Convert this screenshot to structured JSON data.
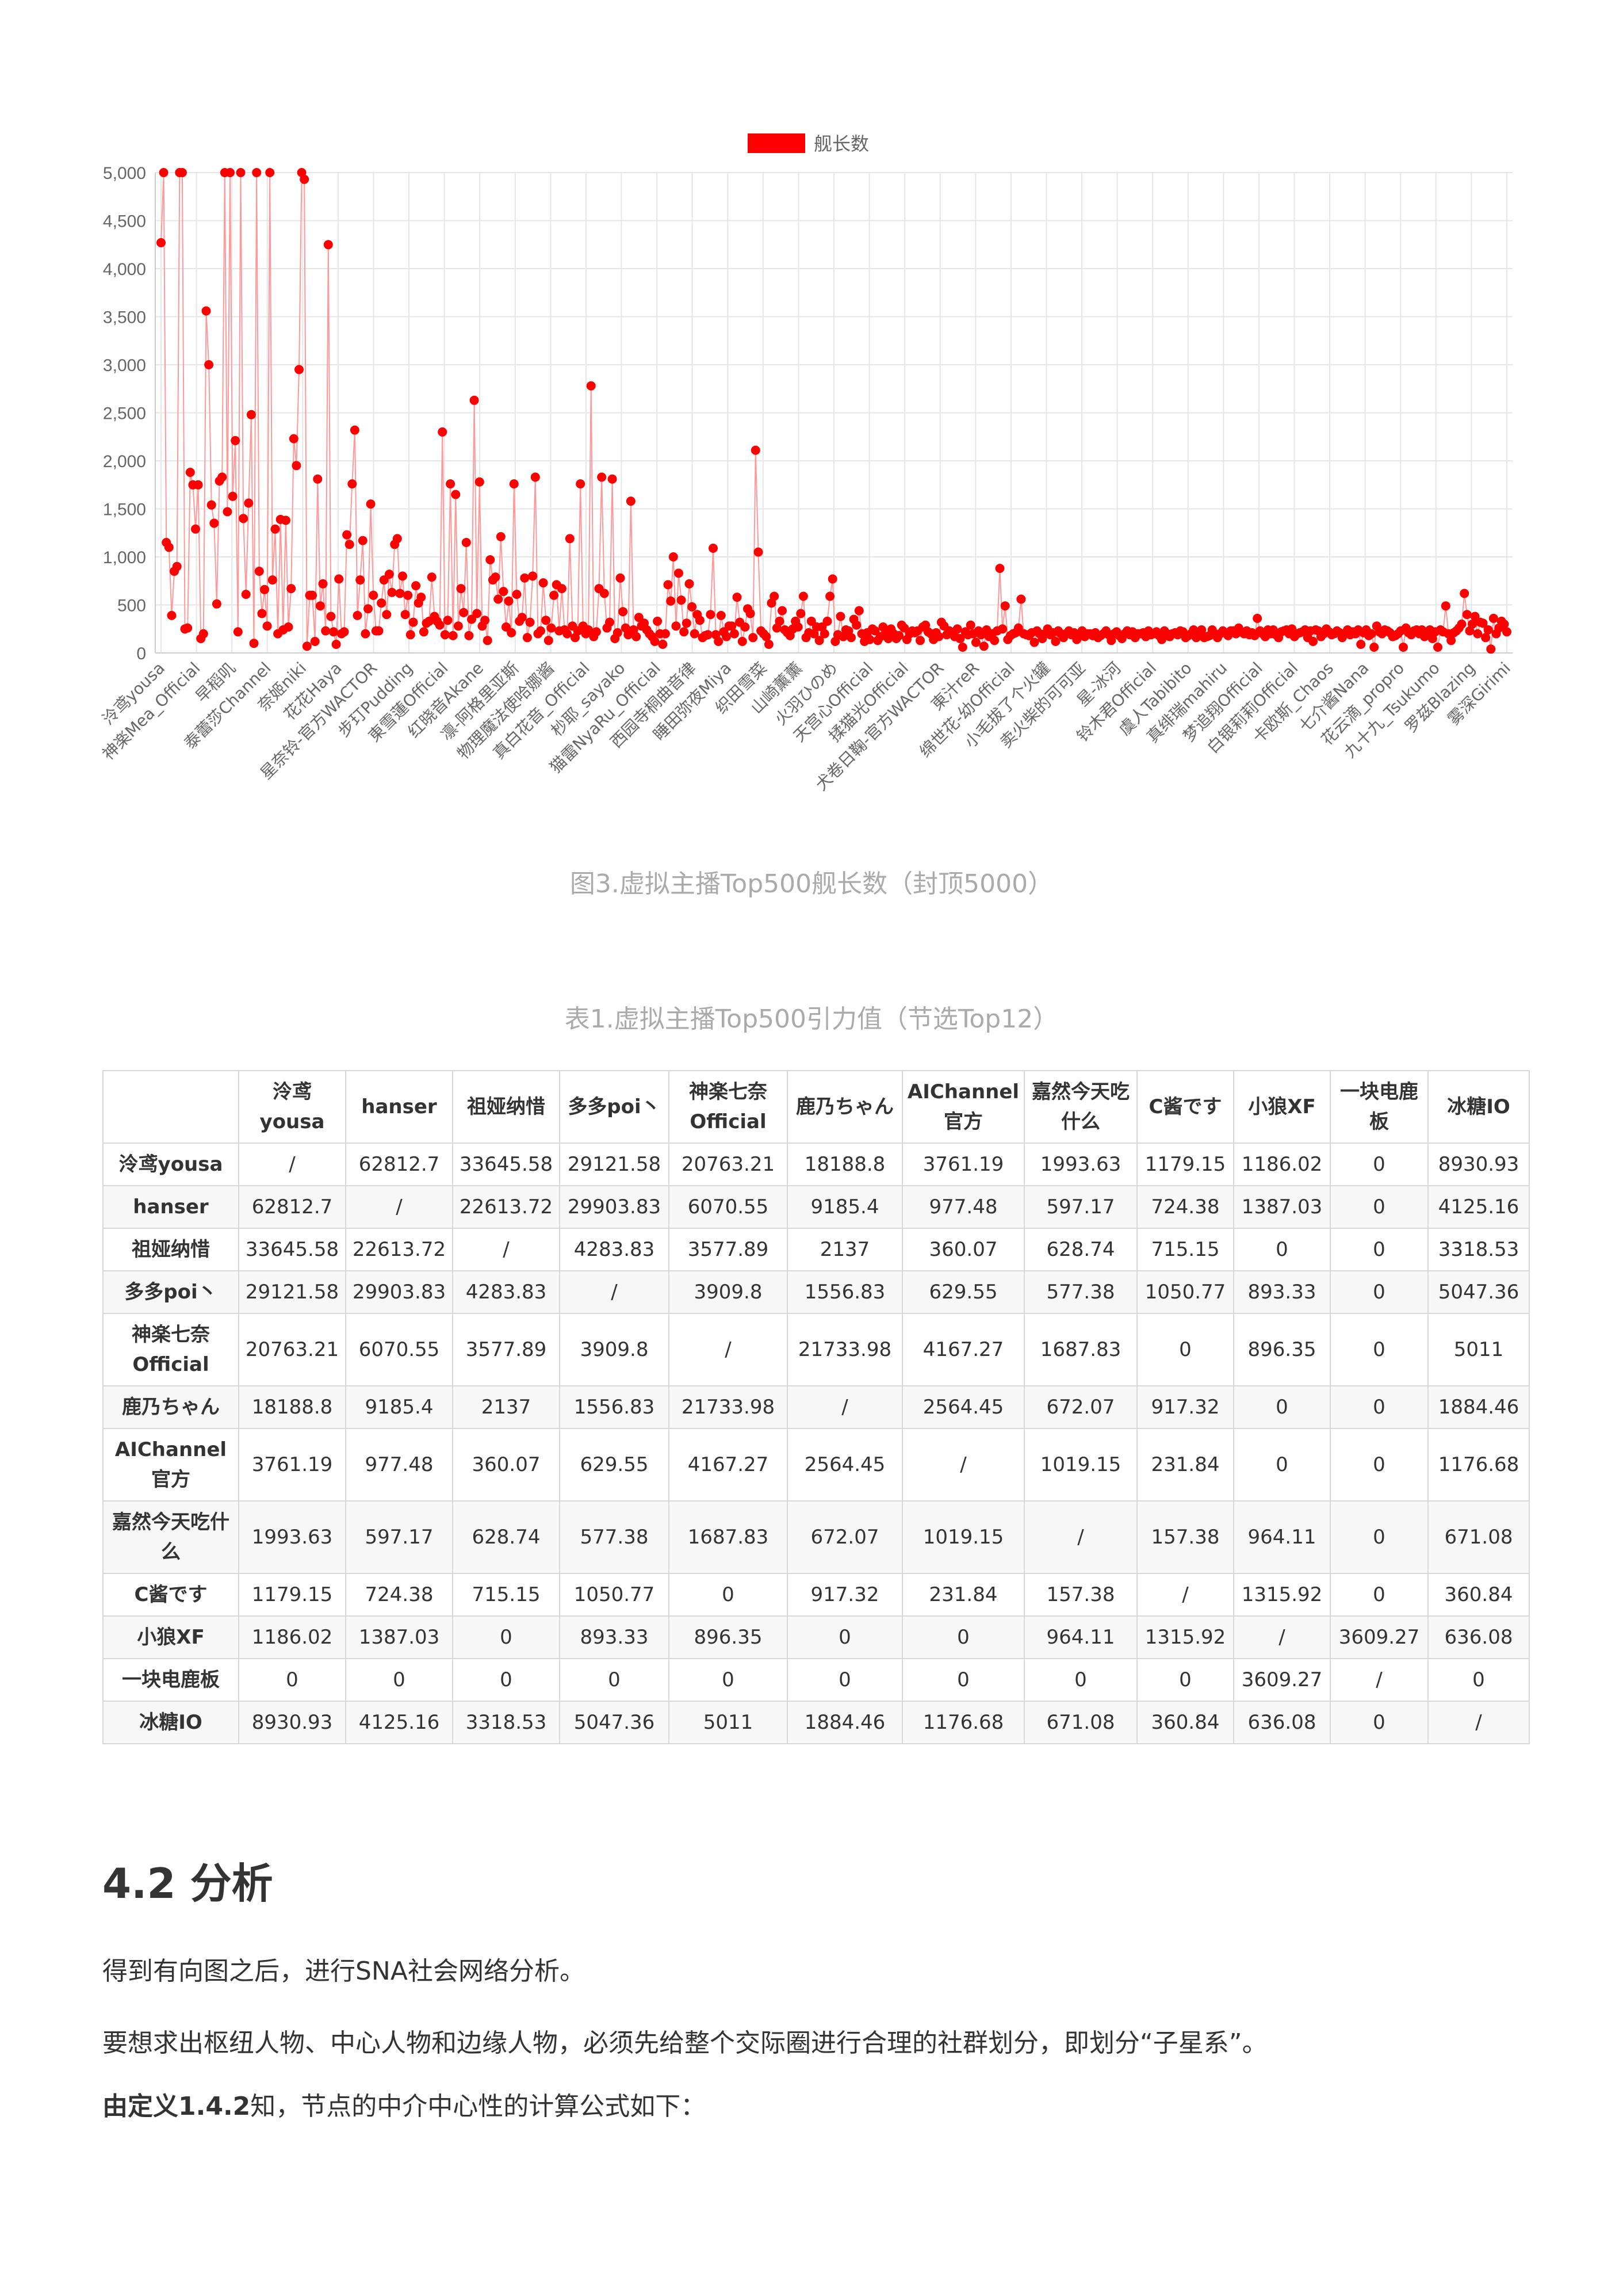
{
  "chart_data": {
    "type": "line",
    "legend": "舰长数",
    "legend_position": "top-center",
    "ylim": [
      0,
      5000
    ],
    "y_ticks": [
      "0",
      "500",
      "1,000",
      "1,500",
      "2,000",
      "2,500",
      "3,000",
      "3,500",
      "4,000",
      "4,500",
      "5,000"
    ],
    "grid": true,
    "x_tick_labels": [
      "泠鸢yousa",
      "神楽Mea_Official",
      "早稻叽",
      "泰蕾莎Channel",
      "奈姬niki",
      "花花Haya",
      "星奈铃-官方WACTOR",
      "步玎Pudding",
      "東雪蓮Official",
      "红晓音Akane",
      "凛-阿格里亚斯",
      "物理魔法使哈娜酱",
      "真白花音_Official",
      "杪耶_sayako",
      "猫雷NyaRu_Official",
      "西园寺桐曲音律",
      "睡田弥夜Miya",
      "织田雪菜",
      "山崎薰薰",
      "火羽ひのめ",
      "天宫心Official",
      "揉猫光Official",
      "犬卷日鞠-官方WACTOR",
      "東汁reR",
      "绵世花-幼Official",
      "小毛拔了个火罐",
      "卖火柴的可可亚",
      "星-冰河",
      "铃木君Official",
      "虞人Tabibito",
      "真绯瑞mahiru",
      "梦追翔Official",
      "白银莉莉Official",
      "卡欧斯_Chaos",
      "七介酱Nana",
      "花云滴_propro",
      "九十九_Tsukumo",
      "罗兹Blazing",
      "雾深Girimi"
    ],
    "series": [
      {
        "name": "舰长数",
        "values": [
          4270,
          5000,
          1150,
          1100,
          390,
          850,
          900,
          5000,
          5000,
          250,
          260,
          1880,
          1750,
          1290,
          1750,
          150,
          200,
          3560,
          3000,
          1540,
          1350,
          510,
          1790,
          1830,
          5000,
          1470,
          5000,
          1630,
          2210,
          220,
          5000,
          1400,
          610,
          1560,
          2480,
          100,
          5000,
          850,
          410,
          660,
          280,
          5000,
          760,
          1290,
          200,
          1390,
          240,
          1380,
          270,
          670,
          2230,
          1950,
          2950,
          5000,
          4930,
          70,
          600,
          600,
          120,
          1810,
          490,
          720,
          230,
          4250,
          380,
          220,
          90,
          770,
          200,
          220,
          1230,
          1130,
          1760,
          2320,
          390,
          760,
          1170,
          200,
          460,
          1550,
          600,
          230,
          230,
          520,
          760,
          400,
          820,
          630,
          1130,
          1190,
          620,
          800,
          400,
          600,
          190,
          320,
          700,
          520,
          580,
          220,
          310,
          330,
          790,
          380,
          330,
          290,
          2300,
          190,
          340,
          1760,
          180,
          1650,
          280,
          670,
          420,
          1150,
          180,
          350,
          2630,
          410,
          1780,
          280,
          340,
          130,
          970,
          760,
          790,
          560,
          1210,
          640,
          270,
          540,
          210,
          1760,
          610,
          330,
          370,
          780,
          160,
          320,
          800,
          1830,
          200,
          230,
          730,
          340,
          130,
          260,
          600,
          710,
          230,
          670,
          240,
          200,
          1190,
          280,
          160,
          230,
          1760,
          280,
          200,
          240,
          2780,
          170,
          220,
          670,
          1830,
          620,
          260,
          320,
          1810,
          150,
          210,
          780,
          430,
          260,
          190,
          1580,
          240,
          170,
          370,
          280,
          310,
          240,
          200,
          170,
          120,
          330,
          200,
          90,
          200,
          710,
          540,
          1000,
          280,
          830,
          550,
          220,
          310,
          720,
          480,
          200,
          400,
          340,
          160,
          180,
          190,
          400,
          1090,
          190,
          120,
          390,
          220,
          170,
          280,
          280,
          200,
          580,
          320,
          120,
          270,
          460,
          410,
          160,
          2110,
          1050,
          230,
          200,
          170,
          90,
          520,
          590,
          260,
          330,
          440,
          240,
          210,
          180,
          250,
          330,
          270,
          410,
          590,
          160,
          210,
          330,
          200,
          270,
          130,
          270,
          200,
          330,
          590,
          770,
          120,
          190,
          380,
          170,
          240,
          230,
          160,
          350,
          290,
          440,
          200,
          120,
          210,
          140,
          250,
          230,
          130,
          170,
          270,
          230,
          150,
          250,
          200,
          150,
          180,
          290,
          260,
          140,
          200,
          230,
          210,
          230,
          130,
          270,
          290,
          220,
          200,
          140,
          210,
          170,
          320,
          280,
          190,
          230,
          210,
          170,
          250,
          150,
          60,
          220,
          190,
          290,
          200,
          110,
          230,
          190,
          70,
          240,
          170,
          200,
          130,
          230,
          880,
          250,
          490,
          140,
          180,
          200,
          210,
          260,
          560,
          200,
          190,
          180,
          210,
          110,
          230,
          200,
          150,
          200,
          250,
          190,
          210,
          120,
          230,
          200,
          160,
          200,
          230,
          190,
          210,
          140,
          200,
          230,
          170,
          200,
          200,
          180,
          210,
          160,
          180,
          200,
          230,
          190,
          130,
          200,
          220,
          180,
          150,
          200,
          230,
          190,
          220,
          160,
          200,
          200,
          210,
          170,
          230,
          190,
          200,
          220,
          180,
          140,
          230,
          200,
          170,
          200,
          210,
          190,
          230,
          220,
          160,
          180,
          200,
          240,
          160,
          200,
          240,
          160,
          170,
          180,
          240,
          200,
          160,
          200,
          230,
          210,
          180,
          230,
          230,
          200,
          260,
          220,
          200,
          230,
          190,
          210,
          180,
          360,
          230,
          200,
          170,
          240,
          200,
          240,
          190,
          160,
          220,
          230,
          240,
          200,
          250,
          170,
          200,
          210,
          220,
          240,
          160,
          230,
          120,
          240,
          230,
          170,
          200,
          250,
          220,
          190,
          200,
          230,
          210,
          160,
          200,
          240,
          190,
          220,
          200,
          240,
          90,
          210,
          240,
          180,
          200,
          60,
          280,
          220,
          200,
          240,
          230,
          210,
          170,
          180,
          200,
          230,
          60,
          260,
          210,
          190,
          230,
          240,
          200,
          240,
          170,
          210,
          240,
          150,
          220,
          60,
          240,
          220,
          490,
          200,
          130,
          210,
          230,
          260,
          300,
          620,
          400,
          230,
          300,
          380,
          200,
          320,
          310,
          160,
          240,
          40,
          360,
          200,
          260,
          330,
          300,
          220
        ]
      }
    ]
  },
  "figure_caption": "图3.虚拟主播Top500舰长数（封顶5000）",
  "table_caption": "表1.虚拟主播Top500引力值（节选Top12）",
  "table": {
    "header": [
      "",
      "泠鸢yousa",
      "hanser",
      "祖娅纳惜",
      "多多poi丶",
      "神楽七奈Official",
      "鹿乃ちゃん",
      "AIChannel官方",
      "嘉然今天吃什么",
      "C酱です",
      "小狼XF",
      "一块电鹿板",
      "冰糖IO"
    ],
    "rows": [
      [
        "泠鸢yousa",
        "/",
        "62812.7",
        "33645.58",
        "29121.58",
        "20763.21",
        "18188.8",
        "3761.19",
        "1993.63",
        "1179.15",
        "1186.02",
        "0",
        "8930.93"
      ],
      [
        "hanser",
        "62812.7",
        "/",
        "22613.72",
        "29903.83",
        "6070.55",
        "9185.4",
        "977.48",
        "597.17",
        "724.38",
        "1387.03",
        "0",
        "4125.16"
      ],
      [
        "祖娅纳惜",
        "33645.58",
        "22613.72",
        "/",
        "4283.83",
        "3577.89",
        "2137",
        "360.07",
        "628.74",
        "715.15",
        "0",
        "0",
        "3318.53"
      ],
      [
        "多多poi丶",
        "29121.58",
        "29903.83",
        "4283.83",
        "/",
        "3909.8",
        "1556.83",
        "629.55",
        "577.38",
        "1050.77",
        "893.33",
        "0",
        "5047.36"
      ],
      [
        "神楽七奈Official",
        "20763.21",
        "6070.55",
        "3577.89",
        "3909.8",
        "/",
        "21733.98",
        "4167.27",
        "1687.83",
        "0",
        "896.35",
        "0",
        "5011"
      ],
      [
        "鹿乃ちゃん",
        "18188.8",
        "9185.4",
        "2137",
        "1556.83",
        "21733.98",
        "/",
        "2564.45",
        "672.07",
        "917.32",
        "0",
        "0",
        "1884.46"
      ],
      [
        "AIChannel官方",
        "3761.19",
        "977.48",
        "360.07",
        "629.55",
        "4167.27",
        "2564.45",
        "/",
        "1019.15",
        "231.84",
        "0",
        "0",
        "1176.68"
      ],
      [
        "嘉然今天吃什么",
        "1993.63",
        "597.17",
        "628.74",
        "577.38",
        "1687.83",
        "672.07",
        "1019.15",
        "/",
        "157.38",
        "964.11",
        "0",
        "671.08"
      ],
      [
        "C酱です",
        "1179.15",
        "724.38",
        "715.15",
        "1050.77",
        "0",
        "917.32",
        "231.84",
        "157.38",
        "/",
        "1315.92",
        "0",
        "360.84"
      ],
      [
        "小狼XF",
        "1186.02",
        "1387.03",
        "0",
        "893.33",
        "896.35",
        "0",
        "0",
        "964.11",
        "1315.92",
        "/",
        "3609.27",
        "636.08"
      ],
      [
        "一块电鹿板",
        "0",
        "0",
        "0",
        "0",
        "0",
        "0",
        "0",
        "0",
        "0",
        "3609.27",
        "/",
        "0"
      ],
      [
        "冰糖IO",
        "8930.93",
        "4125.16",
        "3318.53",
        "5047.36",
        "5011",
        "1884.46",
        "1176.68",
        "671.08",
        "360.84",
        "636.08",
        "0",
        "/"
      ]
    ]
  },
  "section": {
    "title": "4.2 分析"
  },
  "paragraphs": {
    "p1": "得到有向图之后，进行SNA社会网络分析。",
    "p2": "要想求出枢纽人物、中心人物和边缘人物，必须先给整个交际圈进行合理的社群划分，即划分“子星系”。",
    "p3_bold": "由定义1.4.2",
    "p3_rest": "知，节点的中介中心性的计算公式如下："
  },
  "colors": {
    "series": "#ff0000",
    "line": "#ff9999",
    "grid": "#e6e6e6"
  }
}
